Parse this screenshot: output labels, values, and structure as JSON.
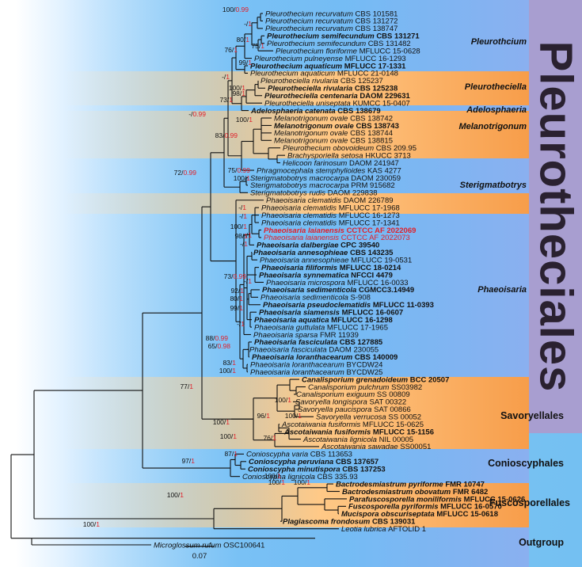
{
  "order_label": "Pleurotheciales",
  "scale_label": "0.07",
  "support_colors": {
    "bootstrap": "#111111",
    "posterior": "#e0202a"
  },
  "bands": [
    {
      "color": "blue"
    },
    {
      "color": "orange"
    },
    {
      "color": "blue"
    },
    {
      "color": "orange"
    },
    {
      "color": "blue"
    },
    {
      "color": "orange"
    },
    {
      "color": "blue"
    },
    {
      "color": "orange"
    },
    {
      "color": "blue"
    },
    {
      "color": "orange"
    },
    {
      "color": "blue"
    }
  ],
  "clades": [
    {
      "label": "Pleurothcium"
    },
    {
      "label": "Pleurotheciella"
    },
    {
      "label": "Adelosphaeria"
    },
    {
      "label": "Melanotrigonum"
    },
    {
      "label": "Sterigmatbotrys"
    },
    {
      "label": "Phaeoisaria"
    }
  ],
  "groups": [
    {
      "label": "Savoryellales"
    },
    {
      "label": "Conioscyphales"
    },
    {
      "label": "Fuscosporellales"
    },
    {
      "label": "Outgroup"
    }
  ],
  "leaves": [
    {
      "species": "Pleurothecium recurvatum",
      "strain": "CBS 101581",
      "bold": false,
      "red": false
    },
    {
      "species": "Pleurothecium recurvatum",
      "strain": "CBS 131272",
      "bold": false,
      "red": false
    },
    {
      "species": "Pleurothecium recurvatum",
      "strain": "CBS 138747",
      "bold": false,
      "red": false
    },
    {
      "species": "Pleurothecium semifecundum",
      "strain": "CBS 131271",
      "bold": true,
      "red": false
    },
    {
      "species": "Pleurothecium semifecundum",
      "strain": "CBS 131482",
      "bold": false,
      "red": false
    },
    {
      "species": "Pleurothecium floriforme",
      "strain": "MFLUCC 15-0628",
      "bold": false,
      "red": false
    },
    {
      "species": "Pleurothecium pulneyense",
      "strain": "MFLUCC 16-1293",
      "bold": false,
      "red": false
    },
    {
      "species": "Pleurothecium aquaticum",
      "strain": "MFLUCC 17-1331",
      "bold": true,
      "red": false
    },
    {
      "species": "Pleurothecium aquaticum",
      "strain": "MFLUCC 21-0148",
      "bold": false,
      "red": false
    },
    {
      "species": "Pleurotheciella rivularia",
      "strain": "CBS 125237",
      "bold": false,
      "red": false
    },
    {
      "species": "Pleurotheciella rivularia",
      "strain": "CBS 125238",
      "bold": true,
      "red": false
    },
    {
      "species": "Pleurotheciella centenaria",
      "strain": "DAOM 229631",
      "bold": true,
      "red": false
    },
    {
      "species": "Pleurotheciella uniseptata",
      "strain": "KUMCC 15-0407",
      "bold": false,
      "red": false
    },
    {
      "species": "Adelosphaeria catenata",
      "strain": "CBS 138679",
      "bold": true,
      "red": false
    },
    {
      "species": "Melanotrigonum ovale",
      "strain": "CBS 138742",
      "bold": false,
      "red": false
    },
    {
      "species": "Melanotrigonum ovale",
      "strain": "CBS 138743",
      "bold": true,
      "red": false
    },
    {
      "species": "Melanotrigonum ovale",
      "strain": "CBS 138744",
      "bold": false,
      "red": false
    },
    {
      "species": "Melanotrigonum ovale",
      "strain": "CBS 138815",
      "bold": false,
      "red": false
    },
    {
      "species": "Pleurothecium obovoideum",
      "strain": "CBS 209.95",
      "bold": false,
      "red": false
    },
    {
      "species": "Brachysporiella setosa",
      "strain": "HKUCC 3713",
      "bold": false,
      "red": false
    },
    {
      "species": "Helicoon farinosum",
      "strain": "DAOM 241947",
      "bold": false,
      "red": false
    },
    {
      "species": "Phragmocephala stemphylioides",
      "strain": "KAS 4277",
      "bold": false,
      "red": false
    },
    {
      "species": "Sterigmatobotrys macrocarpa",
      "strain": "DAOM 230059",
      "bold": false,
      "red": false
    },
    {
      "species": "Sterigmatobotrys macrocarpa",
      "strain": "PRM 915682",
      "bold": false,
      "red": false
    },
    {
      "species": "Sterigmatobotrys rudis",
      "strain": "DAOM 229838",
      "bold": false,
      "red": false
    },
    {
      "species": "Phaeoisaria clematidis",
      "strain": "DAOM 226789",
      "bold": false,
      "red": false
    },
    {
      "species": "Phaeoisaria clematidis",
      "strain": "MFLUCC 17-1968",
      "bold": false,
      "red": false
    },
    {
      "species": "Phaeoisaria clematidis",
      "strain": "MFLUCC 16-1273",
      "bold": false,
      "red": false
    },
    {
      "species": "Phaeoisaria clematidis",
      "strain": "MFLUCC 17-1341",
      "bold": false,
      "red": false
    },
    {
      "species": "Phaeoisaria laianensis",
      "strain": "CCTCC AF 2022069",
      "bold": true,
      "red": true
    },
    {
      "species": "Phaeoisaria laianensis",
      "strain": "CCTCC AF 2022073",
      "bold": false,
      "red": true
    },
    {
      "species": "Phaeoisaria dalbergiae",
      "strain": "CPC 39540",
      "bold": true,
      "red": false
    },
    {
      "species": "Phaeoisaria annesophieae",
      "strain": "CBS 143235",
      "bold": true,
      "red": false
    },
    {
      "species": "Phaeoisaria annesophieae",
      "strain": "MFLUCC 19-0531",
      "bold": false,
      "red": false
    },
    {
      "species": "Phaeoisaria filiformis",
      "strain": "MFLUCC 18-0214",
      "bold": true,
      "red": false
    },
    {
      "species": "Phaeoisaria synnematica",
      "strain": "NFCCI 4479",
      "bold": true,
      "red": false
    },
    {
      "species": "Phaeoisaria microspora",
      "strain": "MFLUCC 16-0033",
      "bold": false,
      "red": false
    },
    {
      "species": "Phaeoisaria sedimenticola",
      "strain": "CGMCC3.14949",
      "bold": true,
      "red": false
    },
    {
      "species": "Phaeoisaria sedimenticola",
      "strain": "S-908",
      "bold": false,
      "red": false
    },
    {
      "species": "Phaeoisaria pseudoclematidis",
      "strain": "MFLUCC 11-0393",
      "bold": true,
      "red": false
    },
    {
      "species": "Phaeoisaria siamensis",
      "strain": "MFLUCC 16-0607",
      "bold": true,
      "red": false
    },
    {
      "species": "Phaeoisaria aquatica",
      "strain": "MFLUCC 16-1298",
      "bold": true,
      "red": false
    },
    {
      "species": "Phaeoisaria guttulata",
      "strain": "MFLUCC 17-1965",
      "bold": false,
      "red": false
    },
    {
      "species": "Phaeoisaria sparsa",
      "strain": "FMR 11939",
      "bold": false,
      "red": false
    },
    {
      "species": "Phaeoisaria fasciculata",
      "strain": "CBS 127885",
      "bold": true,
      "red": false
    },
    {
      "species": "Phaeoisaria fasciculata",
      "strain": "DAOM 230055",
      "bold": false,
      "red": false
    },
    {
      "species": "Phaeoisaria loranthacearum",
      "strain": "CBS 140009",
      "bold": true,
      "red": false
    },
    {
      "species": "Phaeoisaria loranthacearum",
      "strain": "BYCDW24",
      "bold": false,
      "red": false
    },
    {
      "species": "Phaeoisaria loranthacearum",
      "strain": "BYCDW25",
      "bold": false,
      "red": false
    },
    {
      "species": "Canalisporium grenadoideum",
      "strain": "BCC 20507",
      "bold": true,
      "red": false
    },
    {
      "species": "Canalisporium pulchrum",
      "strain": "SS03982",
      "bold": false,
      "red": false
    },
    {
      "species": "Canalisporium exiguum",
      "strain": "SS 00809",
      "bold": false,
      "red": false
    },
    {
      "species": "Savoryella longispora",
      "strain": "SAT 00322",
      "bold": false,
      "red": false
    },
    {
      "species": "Savoryella paucispora",
      "strain": "SAT 00866",
      "bold": false,
      "red": false
    },
    {
      "species": "Savoryella verrucosa",
      "strain": "SS 00052",
      "bold": false,
      "red": false
    },
    {
      "species": "Ascotaiwania fusiformis",
      "strain": "MFLUCC 15-0625",
      "bold": false,
      "red": false
    },
    {
      "species": "Ascotaiwania fusiformis",
      "strain": "MFLUCC 15-1156",
      "bold": true,
      "red": false
    },
    {
      "species": "Ascotaiwania lignicola",
      "strain": "NIL 00005",
      "bold": false,
      "red": false
    },
    {
      "species": "Ascotaiwania sawadae",
      "strain": "SS00051",
      "bold": false,
      "red": false
    },
    {
      "species": "Conioscypha varia",
      "strain": "CBS 113653",
      "bold": false,
      "red": false
    },
    {
      "species": "Conioscypha peruviana",
      "strain": "CBS 137657",
      "bold": true,
      "red": false
    },
    {
      "species": "Conioscypha minutispora",
      "strain": "CBS 137253",
      "bold": true,
      "red": false
    },
    {
      "species": "Conioscypha lignicola",
      "strain": "CBS 335.93",
      "bold": false,
      "red": false
    },
    {
      "species": "Bactrodesmiastrum pyriforme",
      "strain": "FMR 10747",
      "bold": true,
      "red": false
    },
    {
      "species": "Bactrodesmiastrum obovatum",
      "strain": "FMR 6482",
      "bold": true,
      "red": false
    },
    {
      "species": "Parafuscosporella moniliformis",
      "strain": "MFLUCC 15-0626",
      "bold": true,
      "red": false
    },
    {
      "species": "Fuscosporella pyriformis",
      "strain": "MFLUCC 16-0570",
      "bold": true,
      "red": false
    },
    {
      "species": "Mucispora obscuriseptata",
      "strain": "MFLUCC 15-0618",
      "bold": true,
      "red": false
    },
    {
      "species": "Plagiascoma frondosum",
      "strain": "CBS 139031",
      "bold": true,
      "red": false
    },
    {
      "species": "Leotia lubrica",
      "strain": "AFTOLID 1",
      "bold": false,
      "red": false
    },
    {
      "species": "Microglossum rufum",
      "strain": "OSC100641",
      "bold": false,
      "red": false
    }
  ],
  "supports": [
    {
      "bs": "100",
      "pp": "0.99"
    },
    {
      "bs": "-",
      "pp": "1"
    },
    {
      "bs": "80",
      "pp": "1"
    },
    {
      "bs": "75",
      "pp": "1"
    },
    {
      "bs": "76",
      "pp": "1"
    },
    {
      "bs": "99",
      "pp": "1"
    },
    {
      "bs": "-",
      "pp": "1"
    },
    {
      "bs": "100",
      "pp": "1"
    },
    {
      "bs": "98",
      "pp": "1"
    },
    {
      "bs": "73",
      "pp": "1"
    },
    {
      "bs": "-",
      "pp": "0.99"
    },
    {
      "bs": "100",
      "pp": "1"
    },
    {
      "bs": "83",
      "pp": "0.99"
    },
    {
      "bs": "72",
      "pp": "0.99"
    },
    {
      "bs": "75",
      "pp": "0.99"
    },
    {
      "bs": "100",
      "pp": "1"
    },
    {
      "bs": "-",
      "pp": "1"
    },
    {
      "bs": "-",
      "pp": "1"
    },
    {
      "bs": "-",
      "pp": "1"
    },
    {
      "bs": "100",
      "pp": "1"
    },
    {
      "bs": "98",
      "pp": "1"
    },
    {
      "bs": "-",
      "pp": "1"
    },
    {
      "bs": "73",
      "pp": "0.99"
    },
    {
      "bs": "-",
      "pp": "1"
    },
    {
      "bs": "92",
      "pp": "1"
    },
    {
      "bs": "80",
      "pp": "1"
    },
    {
      "bs": "99",
      "pp": "1"
    },
    {
      "bs": "-",
      "pp": "1"
    },
    {
      "bs": "88",
      "pp": "0.99"
    },
    {
      "bs": "65",
      "pp": "0.98"
    },
    {
      "bs": "83",
      "pp": "1"
    },
    {
      "bs": "100",
      "pp": "1"
    },
    {
      "bs": "77",
      "pp": "1"
    },
    {
      "bs": "100",
      "pp": "1"
    },
    {
      "bs": "96",
      "pp": "1"
    },
    {
      "bs": "100",
      "pp": "1"
    },
    {
      "bs": "100",
      "pp": "1"
    },
    {
      "bs": "87",
      "pp": "1"
    },
    {
      "bs": "76",
      "pp": "1"
    },
    {
      "bs": "100",
      "pp": "1"
    },
    {
      "bs": "97",
      "pp": "1"
    },
    {
      "bs": "100",
      "pp": "1"
    },
    {
      "bs": "100",
      "pp": "1"
    },
    {
      "bs": "100",
      "pp": "1"
    },
    {
      "bs": "100",
      "pp": "1"
    },
    {
      "bs": "100",
      "pp": "1"
    }
  ]
}
